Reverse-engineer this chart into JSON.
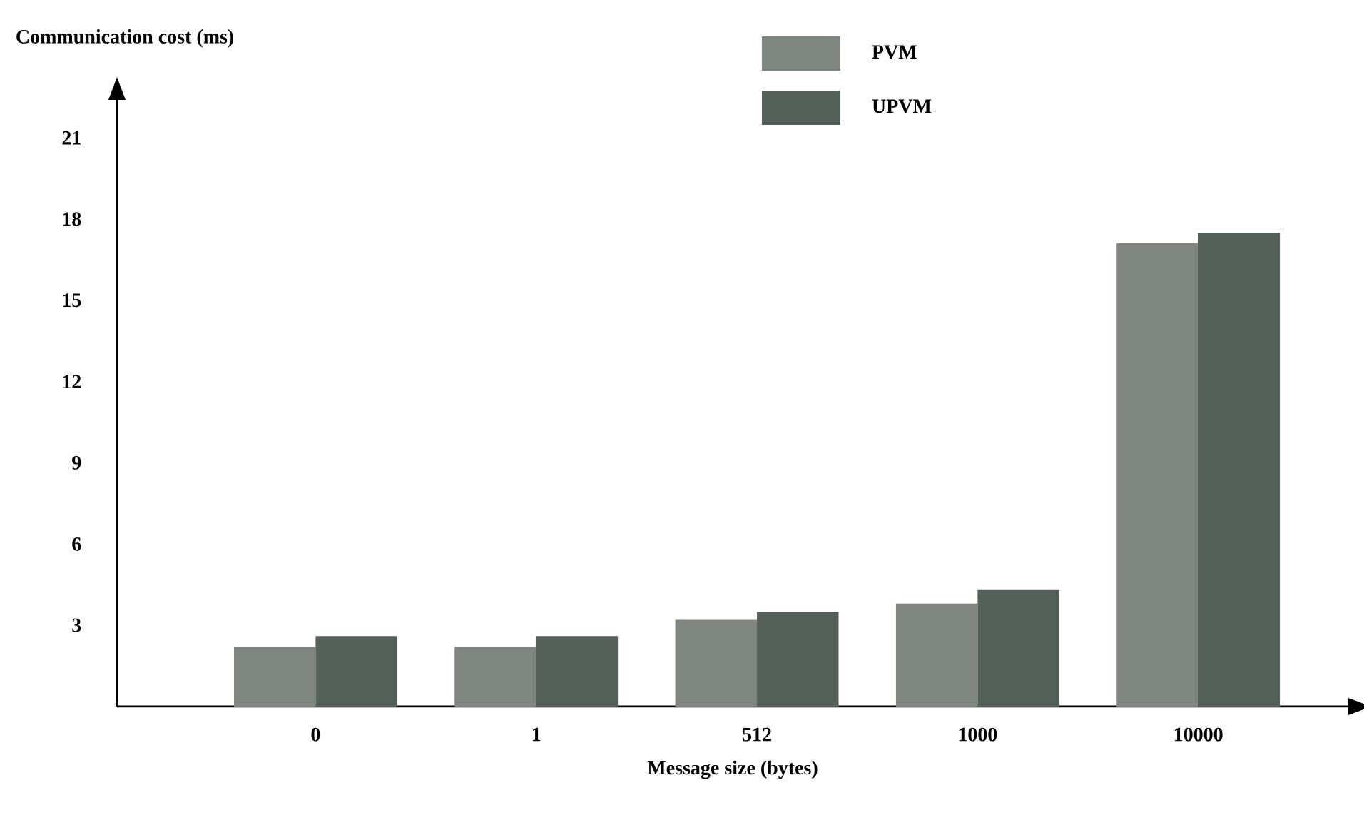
{
  "chart_data": {
    "type": "bar",
    "xlabel": "Message size (bytes)",
    "ylabel": "Communication cost (ms)",
    "categories": [
      "0",
      "1",
      "512",
      "1000",
      "10000"
    ],
    "series": [
      {
        "name": "PVM",
        "color": "#7f8580",
        "values": [
          2.2,
          2.2,
          3.2,
          3.8,
          17.1
        ]
      },
      {
        "name": "UPVM",
        "color": "#56605a",
        "values": [
          2.6,
          2.6,
          3.5,
          4.3,
          17.5
        ]
      }
    ],
    "ylim": [
      0,
      22.4
    ],
    "yticks": [
      3,
      6,
      9,
      12,
      15,
      18,
      21
    ],
    "legend": "top"
  }
}
